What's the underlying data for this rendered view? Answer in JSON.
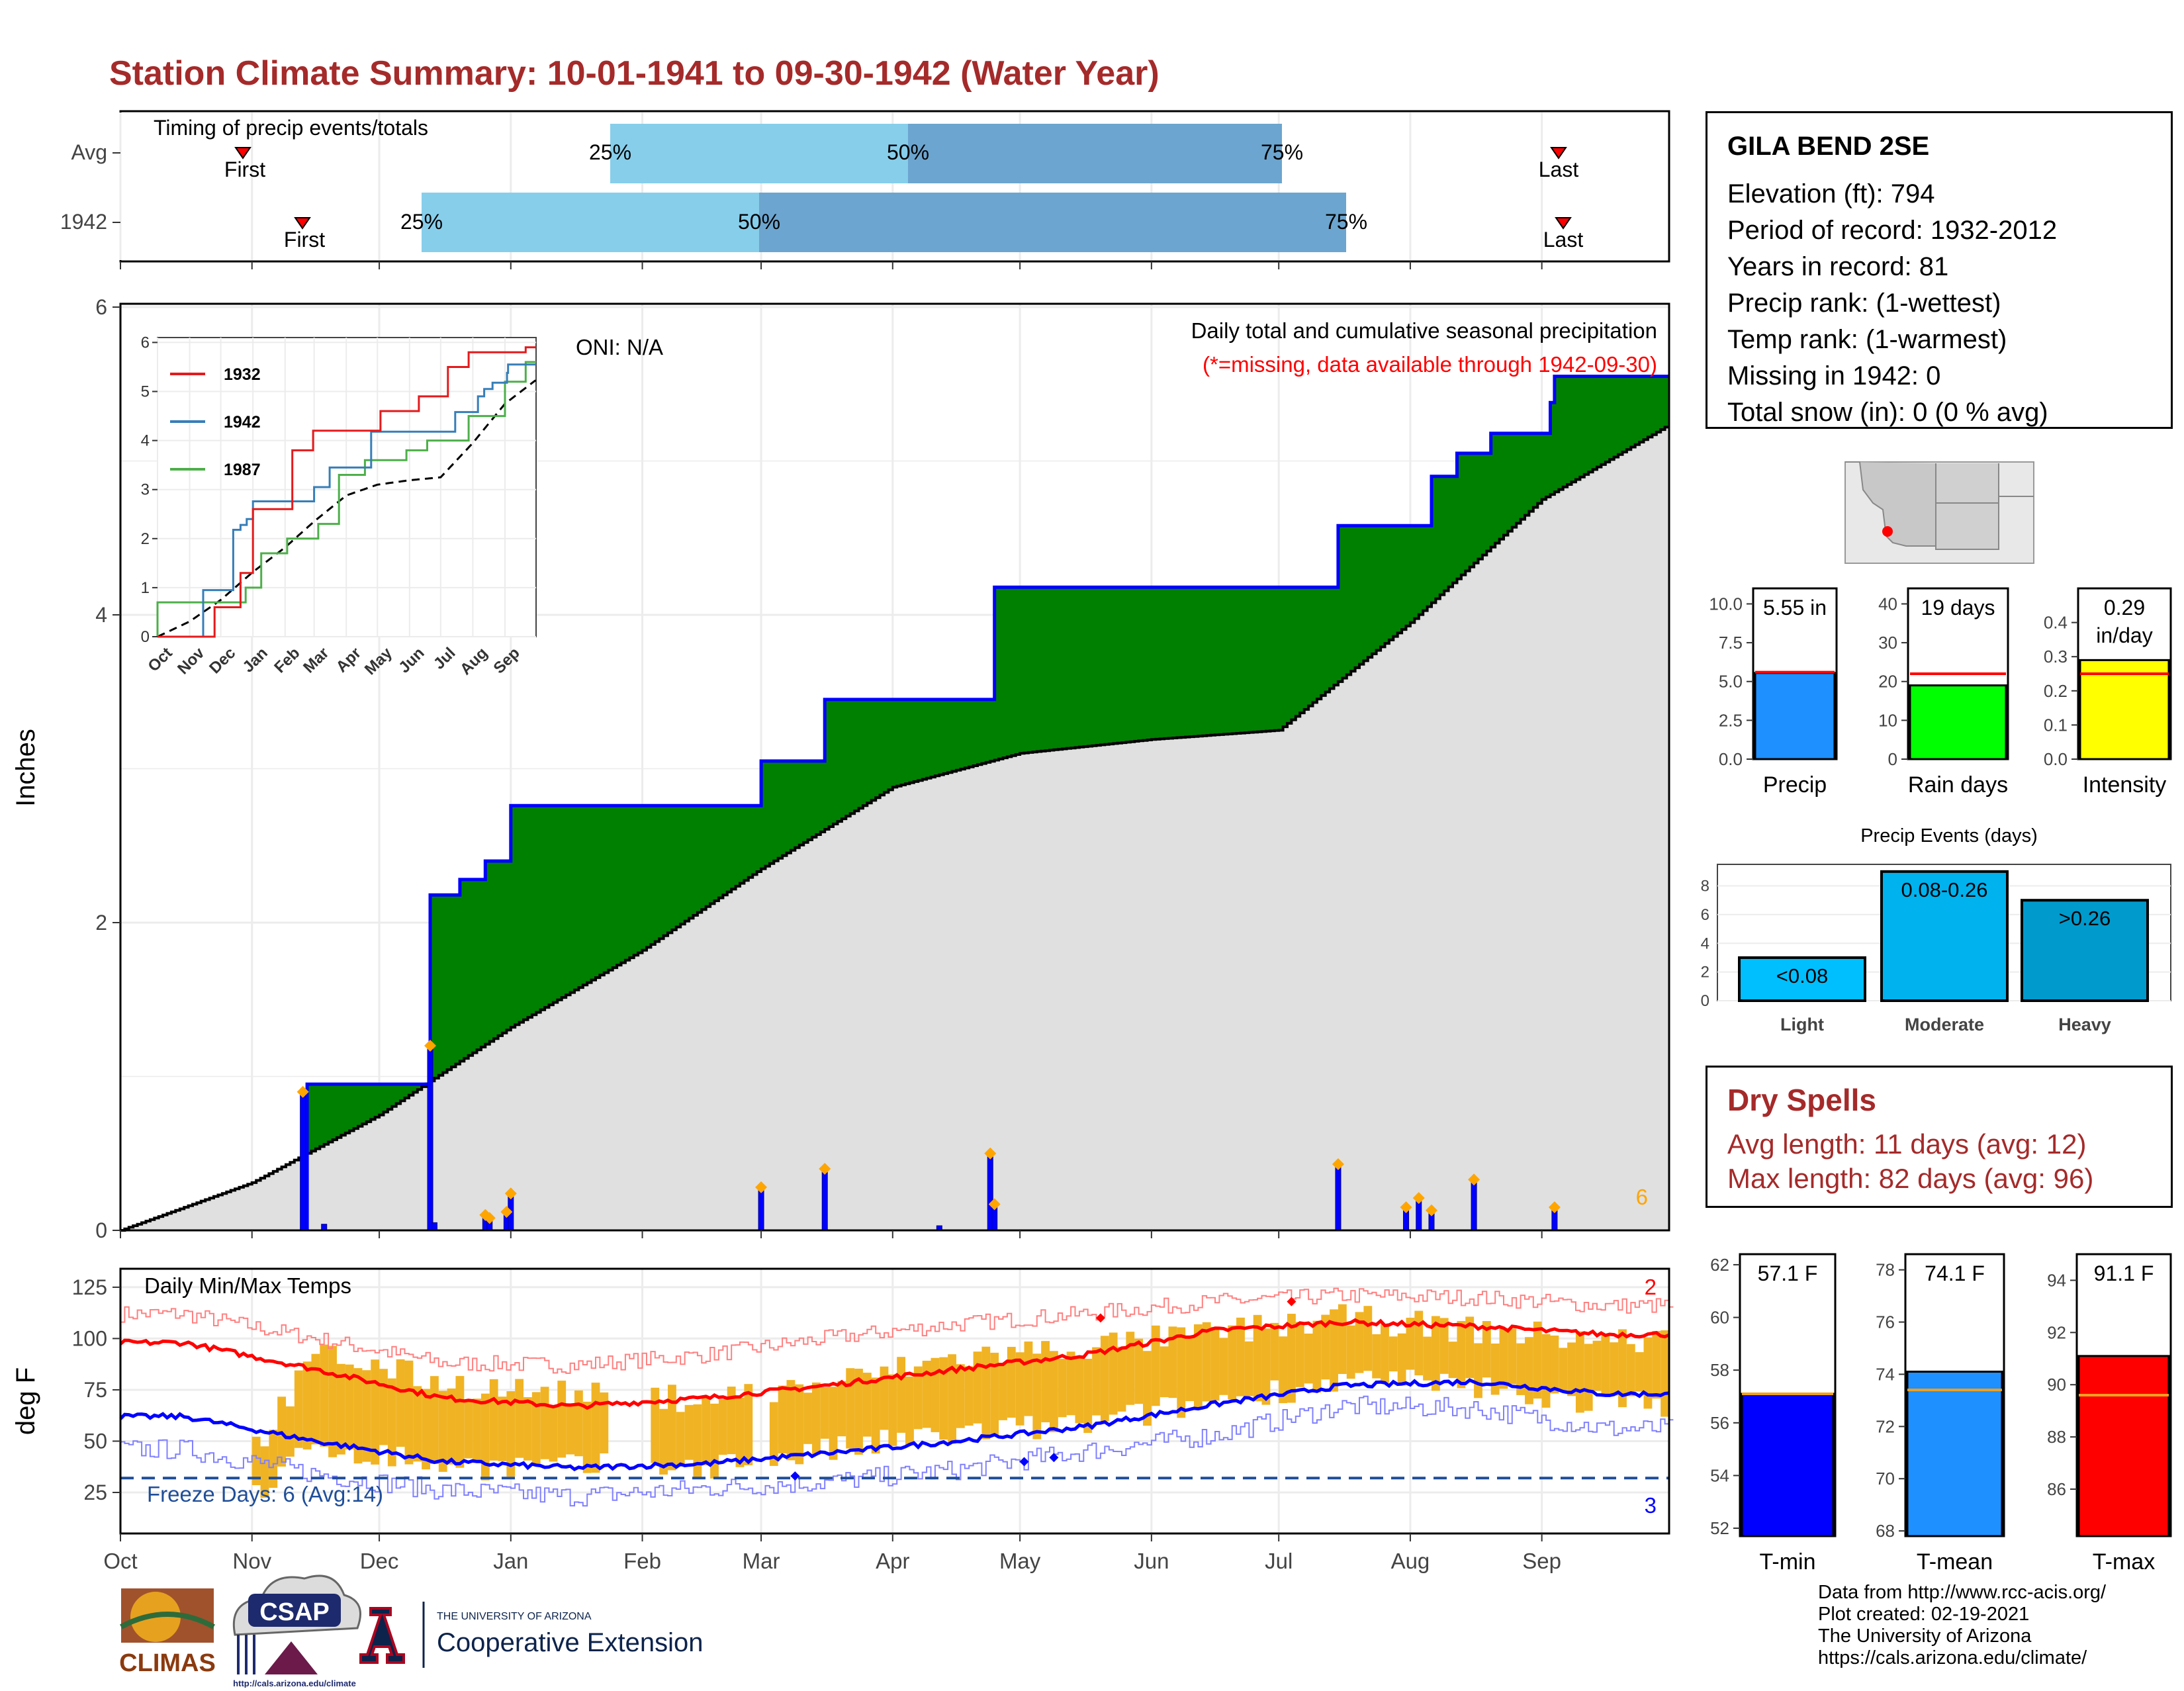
{
  "title": "Station Climate Summary: 10-01-1941 to 09-30-1942 (Water Year)",
  "timing": {
    "label": "Timing of precip events/totals",
    "rows": [
      {
        "name": "Avg",
        "first": "First",
        "last": "Last",
        "p25": "25%",
        "p50": "50%",
        "p75": "75%"
      },
      {
        "name": "1942",
        "first": "First",
        "last": "Last",
        "p25": "25%",
        "p50": "50%",
        "p75": "75%"
      }
    ]
  },
  "station": {
    "name": "GILA BEND 2SE",
    "lines": [
      "Elevation (ft): 794",
      "Period of record: 1932-2012",
      "Years in record: 81",
      "Precip rank:  (1-wettest)",
      "Temp rank:  (1-warmest)",
      "Missing in 1942: 0",
      "Total snow (in): 0 (0 % avg)"
    ]
  },
  "main_chart": {
    "ylabel": "Inches",
    "oni": "ONI: N/A",
    "subtitle": "Daily total and cumulative seasonal precipitation",
    "missing_note": "(*=missing, data available through 1942-09-30)",
    "corner_count": "6",
    "ylim": [
      0,
      6
    ],
    "yticks": [
      "0",
      "2",
      "4",
      "6"
    ]
  },
  "inset": {
    "legend": [
      "1932",
      "1942",
      "1987"
    ],
    "months": [
      "Oct",
      "Nov",
      "Dec",
      "Jan",
      "Feb",
      "Mar",
      "Apr",
      "May",
      "Jun",
      "Jul",
      "Aug",
      "Sep"
    ],
    "yticks": [
      "0",
      "1",
      "2",
      "3",
      "4",
      "5",
      "6"
    ]
  },
  "temp_chart": {
    "label": "Daily Min/Max Temps",
    "ylabel": "deg F",
    "freeze": "Freeze Days: 6 (Avg:14)",
    "count_hot": "2",
    "count_cold": "3",
    "yticks": [
      "25",
      "50",
      "75",
      "100",
      "125"
    ],
    "months": [
      "Oct",
      "Nov",
      "Dec",
      "Jan",
      "Feb",
      "Mar",
      "Apr",
      "May",
      "Jun",
      "Jul",
      "Aug",
      "Sep"
    ]
  },
  "stat_bars": [
    {
      "label": "Precip",
      "value_text": "5.55 in",
      "value": 5.55,
      "avg": 5.6,
      "ylim": [
        0,
        11
      ],
      "yticks": [
        "0.0",
        "2.5",
        "5.0",
        "7.5",
        "10.0"
      ],
      "color": "#1e90ff",
      "avgColor": "#ff0000"
    },
    {
      "label": "Rain days",
      "value_text": "19 days",
      "value": 19,
      "avg": 22,
      "ylim": [
        0,
        44
      ],
      "yticks": [
        "0",
        "10",
        "20",
        "30",
        "40"
      ],
      "color": "#00ff00",
      "avgColor": "#ff0000"
    },
    {
      "label": "Intensity",
      "value_text": "0.29 in/day",
      "value": 0.29,
      "avg": 0.25,
      "ylim": [
        0,
        0.5
      ],
      "yticks": [
        "0.0",
        "0.1",
        "0.2",
        "0.3",
        "0.4"
      ],
      "color": "#ffff00",
      "avgColor": "#ff0000"
    }
  ],
  "events": {
    "title": "Precip Events (days)",
    "bars": [
      {
        "label": "Light",
        "range": "<0.08",
        "value": 3,
        "color": "#00bfff"
      },
      {
        "label": "Moderate",
        "range": "0.08-0.26",
        "value": 9,
        "color": "#00b2ee"
      },
      {
        "label": "Heavy",
        "range": ">0.26",
        "value": 7,
        "color": "#009acd"
      }
    ],
    "yticks": [
      "0",
      "2",
      "4",
      "6",
      "8"
    ]
  },
  "dry_spells": {
    "title": "Dry Spells",
    "avg_length": "Avg length: 11 days (avg: 12)",
    "max_length": "Max length: 82 days (avg: 96)"
  },
  "temp_bars": [
    {
      "label": "T-min",
      "value_text": "57.1 F",
      "value": 57.1,
      "avg": 57.1,
      "ylim": [
        51.7,
        62.4
      ],
      "yticks": [
        "52",
        "54",
        "56",
        "58",
        "60",
        "62"
      ],
      "color": "#0000ff"
    },
    {
      "label": "T-mean",
      "value_text": "74.1 F",
      "value": 74.1,
      "avg": 73.4,
      "ylim": [
        67.8,
        78.6
      ],
      "yticks": [
        "68",
        "70",
        "72",
        "74",
        "76",
        "78"
      ],
      "color": "#1e90ff"
    },
    {
      "label": "T-max",
      "value_text": "91.1 F",
      "value": 91.1,
      "avg": 89.6,
      "ylim": [
        84.2,
        95.0
      ],
      "yticks": [
        "86",
        "88",
        "90",
        "92",
        "94"
      ],
      "color": "#ff0000"
    }
  ],
  "footer": [
    "Data from http://www.rcc-acis.org/",
    "Plot created: 02-19-2021",
    "The University of Arizona",
    "https://cals.arizona.edu/climate/"
  ],
  "logos": {
    "climas": "CLIMAS",
    "csap": "CSAP",
    "csap_url": "http://cals.arizona.edu/climate",
    "ua_small": "THE UNIVERSITY OF ARIZONA",
    "ua_ext": "Cooperative Extension"
  },
  "chart_data": {
    "type": "area",
    "title": "Daily total and cumulative seasonal precipitation",
    "ylabel": "Inches",
    "ylim": [
      0,
      6
    ],
    "cumulative_1942": [
      {
        "date": "1941-11-14",
        "value": 0.95
      },
      {
        "date": "1941-12-13",
        "value": 2.18
      },
      {
        "date": "1941-12-20",
        "value": 2.28
      },
      {
        "date": "1941-12-26",
        "value": 2.4
      },
      {
        "date": "1942-01-01",
        "value": 2.76
      },
      {
        "date": "1942-03-01",
        "value": 3.05
      },
      {
        "date": "1942-03-16",
        "value": 3.45
      },
      {
        "date": "1942-04-25",
        "value": 4.18
      },
      {
        "date": "1942-07-15",
        "value": 4.58
      },
      {
        "date": "1942-08-06",
        "value": 4.9
      },
      {
        "date": "1942-08-12",
        "value": 5.05
      },
      {
        "date": "1942-08-20",
        "value": 5.18
      },
      {
        "date": "1942-09-03",
        "value": 5.38
      },
      {
        "date": "1942-09-04",
        "value": 5.55
      }
    ],
    "daily_precip": [
      {
        "date": "1941-11-13",
        "value": 0.9
      },
      {
        "date": "1941-11-18",
        "value": 0.04
      },
      {
        "date": "1941-12-13",
        "value": 1.2
      },
      {
        "date": "1941-12-14",
        "value": 0.05
      },
      {
        "date": "1941-12-26",
        "value": 0.1
      },
      {
        "date": "1941-12-27",
        "value": 0.08
      },
      {
        "date": "1941-12-31",
        "value": 0.12
      },
      {
        "date": "1942-01-01",
        "value": 0.24
      },
      {
        "date": "1942-03-01",
        "value": 0.28
      },
      {
        "date": "1942-03-16",
        "value": 0.4
      },
      {
        "date": "1942-04-12",
        "value": 0.03
      },
      {
        "date": "1942-04-24",
        "value": 0.5
      },
      {
        "date": "1942-04-25",
        "value": 0.17
      },
      {
        "date": "1942-07-15",
        "value": 0.43
      },
      {
        "date": "1942-07-31",
        "value": 0.15
      },
      {
        "date": "1942-08-03",
        "value": 0.21
      },
      {
        "date": "1942-08-06",
        "value": 0.13
      },
      {
        "date": "1942-08-16",
        "value": 0.33
      },
      {
        "date": "1942-09-04",
        "value": 0.15
      }
    ],
    "average_cumulative": [
      {
        "date": "1941-10-01",
        "value": 0.0
      },
      {
        "date": "1941-11-01",
        "value": 0.31
      },
      {
        "date": "1941-12-01",
        "value": 0.75
      },
      {
        "date": "1942-01-01",
        "value": 1.32
      },
      {
        "date": "1942-02-01",
        "value": 1.82
      },
      {
        "date": "1942-03-01",
        "value": 2.35
      },
      {
        "date": "1942-04-01",
        "value": 2.88
      },
      {
        "date": "1942-05-01",
        "value": 3.1
      },
      {
        "date": "1942-06-01",
        "value": 3.19
      },
      {
        "date": "1942-07-01",
        "value": 3.25
      },
      {
        "date": "1942-08-01",
        "value": 3.95
      },
      {
        "date": "1942-09-01",
        "value": 4.75
      },
      {
        "date": "1942-09-30",
        "value": 5.22
      }
    ],
    "temps_monthly": {
      "months": [
        "Oct",
        "Nov",
        "Dec",
        "Jan",
        "Feb",
        "Mar",
        "Apr",
        "May",
        "Jun",
        "Jul",
        "Aug",
        "Sep"
      ],
      "avg_max": [
        98,
        85,
        71,
        67,
        71,
        77,
        85,
        92,
        104,
        108,
        106,
        102
      ],
      "avg_min": [
        62,
        50,
        40,
        37,
        39,
        44,
        50,
        57,
        68,
        77,
        79,
        73
      ],
      "record_max": [
        112,
        100,
        88,
        87,
        92,
        100,
        107,
        112,
        118,
        121,
        120,
        116
      ],
      "record_min": [
        46,
        34,
        26,
        23,
        27,
        30,
        36,
        45,
        53,
        67,
        66,
        56
      ],
      "obs_max": [
        null,
        93,
        78,
        72,
        71,
        78,
        91,
        96,
        103,
        110,
        104,
        99
      ],
      "obs_min": [
        null,
        48,
        38,
        37,
        38,
        45,
        54,
        58,
        70,
        80,
        76,
        68
      ]
    },
    "inset_series": [
      {
        "name": "1932",
        "color": "#e41a1c"
      },
      {
        "name": "1942",
        "color": "#377eb8"
      },
      {
        "name": "1987",
        "color": "#4daf4a"
      }
    ]
  }
}
